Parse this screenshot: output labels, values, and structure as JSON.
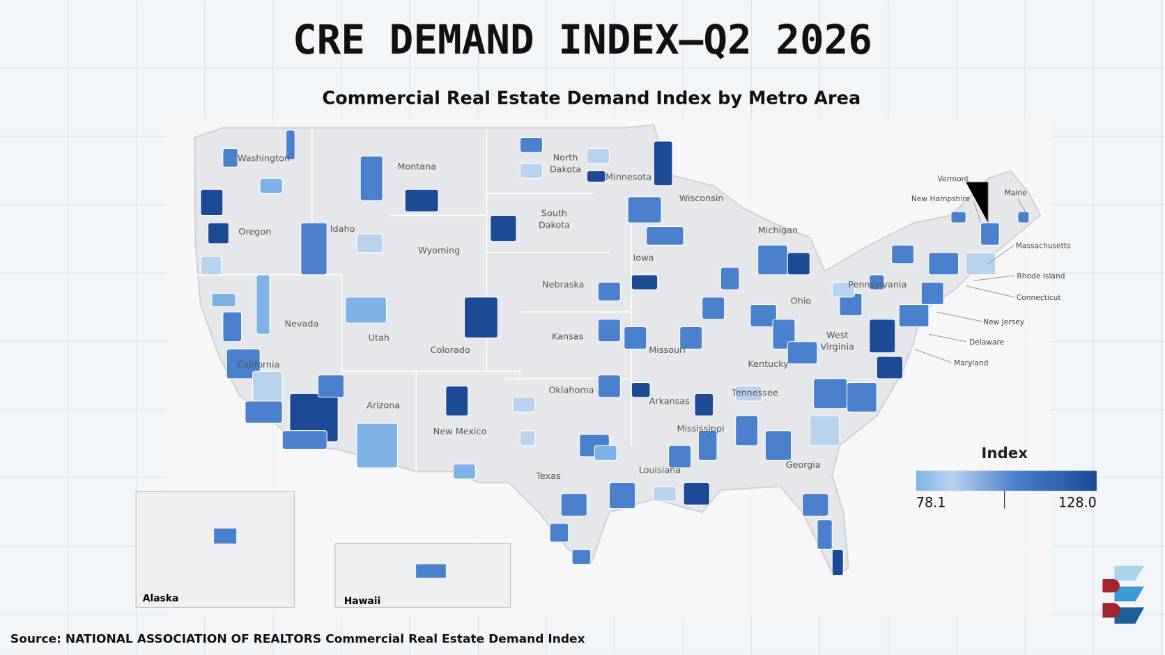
{
  "title": "CRE DEMAND INDEX–Q2 2026",
  "subtitle": "Commercial Real Estate Demand Index by Metro Area",
  "states": [
    "Washington",
    "Montana",
    "North Dakota",
    "Minnesota",
    "Wisconsin",
    "Oregon",
    "Idaho",
    "South Dakota",
    "Wyoming",
    "Michigan",
    "Iowa",
    "Nebraska",
    "Nevada",
    "Utah",
    "Colorado",
    "Kansas",
    "Missouri",
    "Ohio",
    "Pennsylvania",
    "West Virginia",
    "Kentucky",
    "California",
    "Arizona",
    "New Mexico",
    "Oklahoma",
    "Arkansas",
    "Tennessee",
    "Mississippi",
    "Louisiana",
    "Texas",
    "Georgia"
  ],
  "small_states": [
    "Vermont",
    "New Hampshire",
    "Maine",
    "Massachusetts",
    "Rhode Island",
    "Connecticut",
    "New Jersey",
    "Delaware",
    "Maryland"
  ],
  "insets": [
    "Alaska",
    "Hawaii"
  ],
  "legend": {
    "title": "Index",
    "min": 78.1,
    "max": {
      "value": 128,
      "label": "128.0"
    },
    "colors": [
      "#7fb2e6",
      "#b9d3ee",
      "#4a80cc",
      "#1c4a95"
    ]
  },
  "source": "Source: NATIONAL ASSOCIATION OF REALTORS Commercial Real Estate Demand Index"
}
